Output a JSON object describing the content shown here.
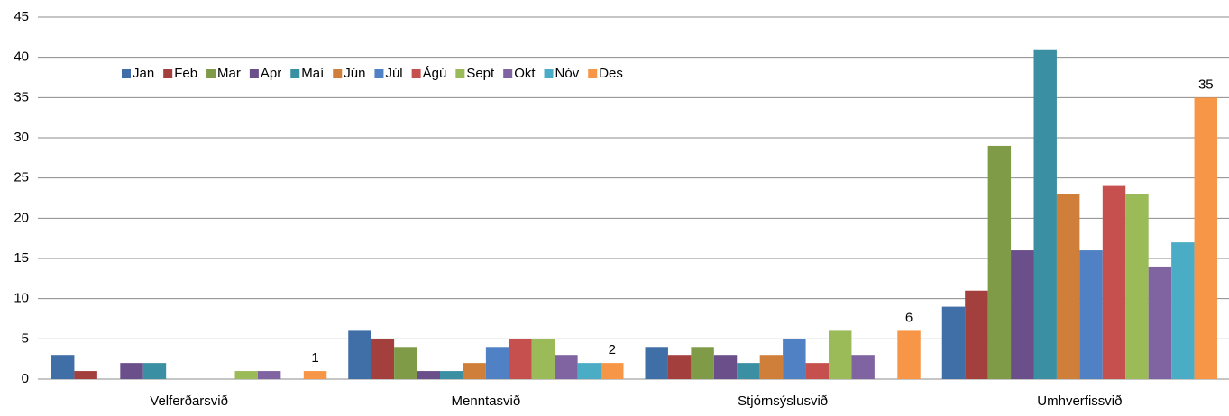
{
  "chart_data": {
    "type": "bar",
    "categories": [
      "Velferðarsvið",
      "Menntasvið",
      "Stjórnsýslusvið",
      "Umhverfissvið"
    ],
    "series": [
      {
        "name": "Jan",
        "color": "#3f6fa6",
        "values": [
          3,
          6,
          4,
          9
        ]
      },
      {
        "name": "Feb",
        "color": "#a33f3d",
        "values": [
          1,
          5,
          3,
          11
        ]
      },
      {
        "name": "Mar",
        "color": "#7f9b48",
        "values": [
          0,
          4,
          4,
          29
        ]
      },
      {
        "name": "Apr",
        "color": "#6a4f8a",
        "values": [
          2,
          1,
          3,
          16
        ]
      },
      {
        "name": "Maí",
        "color": "#3a8fa3",
        "values": [
          2,
          1,
          2,
          41
        ]
      },
      {
        "name": "Jún",
        "color": "#d07f3a",
        "values": [
          0,
          2,
          3,
          23
        ]
      },
      {
        "name": "Júl",
        "color": "#4f81c4",
        "values": [
          0,
          4,
          5,
          16
        ]
      },
      {
        "name": "Ágú",
        "color": "#c6504e",
        "values": [
          0,
          5,
          2,
          24
        ]
      },
      {
        "name": "Sept",
        "color": "#9bbb59",
        "values": [
          1,
          5,
          6,
          23
        ]
      },
      {
        "name": "Okt",
        "color": "#8064a2",
        "values": [
          1,
          3,
          3,
          14
        ]
      },
      {
        "name": "Nóv",
        "color": "#4bacc6",
        "values": [
          0,
          2,
          0,
          17
        ]
      },
      {
        "name": "Des",
        "color": "#f79646",
        "values": [
          1,
          2,
          6,
          35
        ],
        "show_labels": true
      }
    ],
    "ylim": [
      0,
      45
    ],
    "yticks": [
      0,
      5,
      10,
      15,
      20,
      25,
      30,
      35,
      40,
      45
    ],
    "grid": true,
    "legend": "top-left"
  }
}
